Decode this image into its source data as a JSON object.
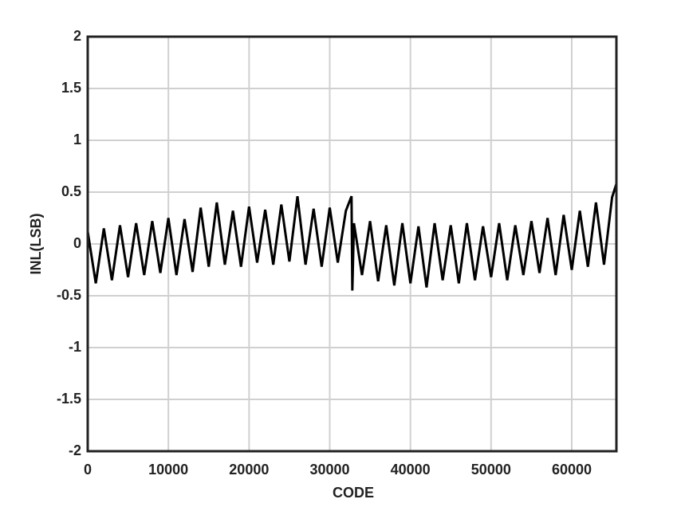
{
  "chart_data": {
    "type": "line",
    "xlabel": "CODE",
    "ylabel": "INL(LSB)",
    "x": [
      0,
      1000,
      2000,
      3000,
      4000,
      5000,
      6000,
      7000,
      8000,
      9000,
      10000,
      11000,
      12000,
      13000,
      14000,
      15000,
      16000,
      17000,
      18000,
      19000,
      20000,
      21000,
      22000,
      23000,
      24000,
      25000,
      26000,
      27000,
      28000,
      29000,
      30000,
      31000,
      32000,
      32700,
      32800,
      33000,
      34000,
      35000,
      36000,
      37000,
      38000,
      39000,
      40000,
      41000,
      42000,
      43000,
      44000,
      45000,
      46000,
      47000,
      48000,
      49000,
      50000,
      51000,
      52000,
      53000,
      54000,
      55000,
      56000,
      57000,
      58000,
      59000,
      60000,
      61000,
      62000,
      63000,
      64000,
      65000,
      65535
    ],
    "series": [
      {
        "color": "#000000",
        "values": [
          0.12,
          -0.38,
          0.15,
          -0.35,
          0.18,
          -0.32,
          0.2,
          -0.3,
          0.22,
          -0.28,
          0.25,
          -0.3,
          0.24,
          -0.27,
          0.35,
          -0.22,
          0.4,
          -0.2,
          0.32,
          -0.22,
          0.36,
          -0.18,
          0.33,
          -0.2,
          0.38,
          -0.17,
          0.46,
          -0.2,
          0.34,
          -0.22,
          0.35,
          -0.18,
          0.32,
          0.46,
          -0.45,
          0.2,
          -0.3,
          0.22,
          -0.36,
          0.18,
          -0.4,
          0.2,
          -0.38,
          0.17,
          -0.42,
          0.2,
          -0.35,
          0.18,
          -0.38,
          0.2,
          -0.35,
          0.17,
          -0.32,
          0.2,
          -0.35,
          0.18,
          -0.3,
          0.22,
          -0.28,
          0.25,
          -0.3,
          0.28,
          -0.25,
          0.32,
          -0.22,
          0.4,
          -0.2,
          0.45,
          0.58
        ]
      }
    ],
    "xlim": [
      0,
      65535
    ],
    "xticks": [
      0,
      10000,
      20000,
      30000,
      40000,
      50000,
      60000
    ],
    "ylim": [
      -2,
      2
    ],
    "yticks": [
      -2,
      -1.5,
      -1,
      -0.5,
      0,
      0.5,
      1,
      1.5,
      2
    ],
    "grid": true
  }
}
